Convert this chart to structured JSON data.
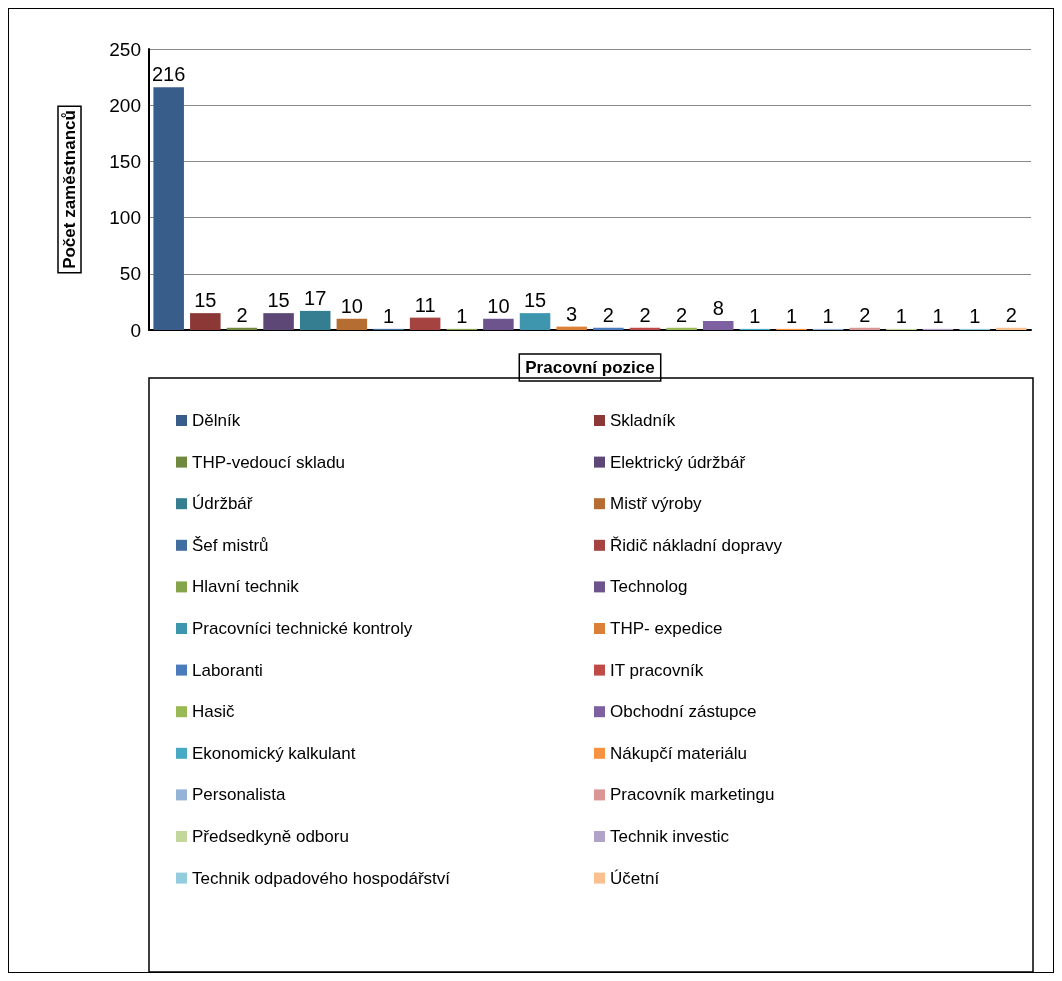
{
  "chart_data": {
    "type": "bar",
    "xlabel": "Pracovní pozice",
    "ylabel": "Počet zaměstnanců",
    "categories": [
      null
    ],
    "series": [
      {
        "name": "Dělník",
        "color": "#385d8a",
        "values": [
          216
        ]
      },
      {
        "name": "Skladník",
        "color": "#8c3836",
        "values": [
          15
        ]
      },
      {
        "name": "THP-vedoucí skladu",
        "color": "#71893f",
        "values": [
          2
        ]
      },
      {
        "name": "Elektrický údržbář",
        "color": "#5c4776",
        "values": [
          15
        ]
      },
      {
        "name": "Údržbář",
        "color": "#357d91",
        "values": [
          17
        ]
      },
      {
        "name": "Mistř výroby",
        "color": "#b66d31",
        "values": [
          10
        ]
      },
      {
        "name": "Šef mistrů",
        "color": "#426da1",
        "values": [
          1
        ]
      },
      {
        "name": "Řidič nákladní dopravy",
        "color": "#a44340",
        "values": [
          11
        ]
      },
      {
        "name": "Hlavní technik",
        "color": "#86a44a",
        "values": [
          1
        ]
      },
      {
        "name": "Technolog",
        "color": "#6e548d",
        "values": [
          10
        ]
      },
      {
        "name": "Pracovníci technické kontroly",
        "color": "#3d96ae",
        "values": [
          15
        ]
      },
      {
        "name": "THP- expedice",
        "color": "#da8137",
        "values": [
          3
        ]
      },
      {
        "name": "Laboranti",
        "color": "#4a7bba",
        "values": [
          2
        ]
      },
      {
        "name": "IT pracovník",
        "color": "#be4b48",
        "values": [
          2
        ]
      },
      {
        "name": "Hasič",
        "color": "#98b954",
        "values": [
          2
        ]
      },
      {
        "name": "Obchodní zástupce",
        "color": "#7d60a0",
        "values": [
          8
        ]
      },
      {
        "name": "Ekonomický kalkulant",
        "color": "#46aac5",
        "values": [
          1
        ]
      },
      {
        "name": "Nákupčí materiálu",
        "color": "#f69240",
        "values": [
          1
        ]
      },
      {
        "name": "Personalista",
        "color": "#95b3d7",
        "values": [
          1
        ]
      },
      {
        "name": "Pracovník marketingu",
        "color": "#d99694",
        "values": [
          2
        ]
      },
      {
        "name": "Předsedkyně odboru",
        "color": "#c3d69b",
        "values": [
          1
        ]
      },
      {
        "name": "Technik investic",
        "color": "#b3a2c7",
        "values": [
          1
        ]
      },
      {
        "name": "Technik odpadového hospodářství",
        "color": "#93cddd",
        "values": [
          1
        ]
      },
      {
        "name": "Účetní",
        "color": "#fac090",
        "values": [
          2
        ]
      }
    ],
    "ylim": [
      0,
      250
    ],
    "yticks": [
      0,
      50,
      100,
      150,
      200,
      250
    ],
    "grid": "y",
    "data_labels": true,
    "legend": "bottom"
  }
}
